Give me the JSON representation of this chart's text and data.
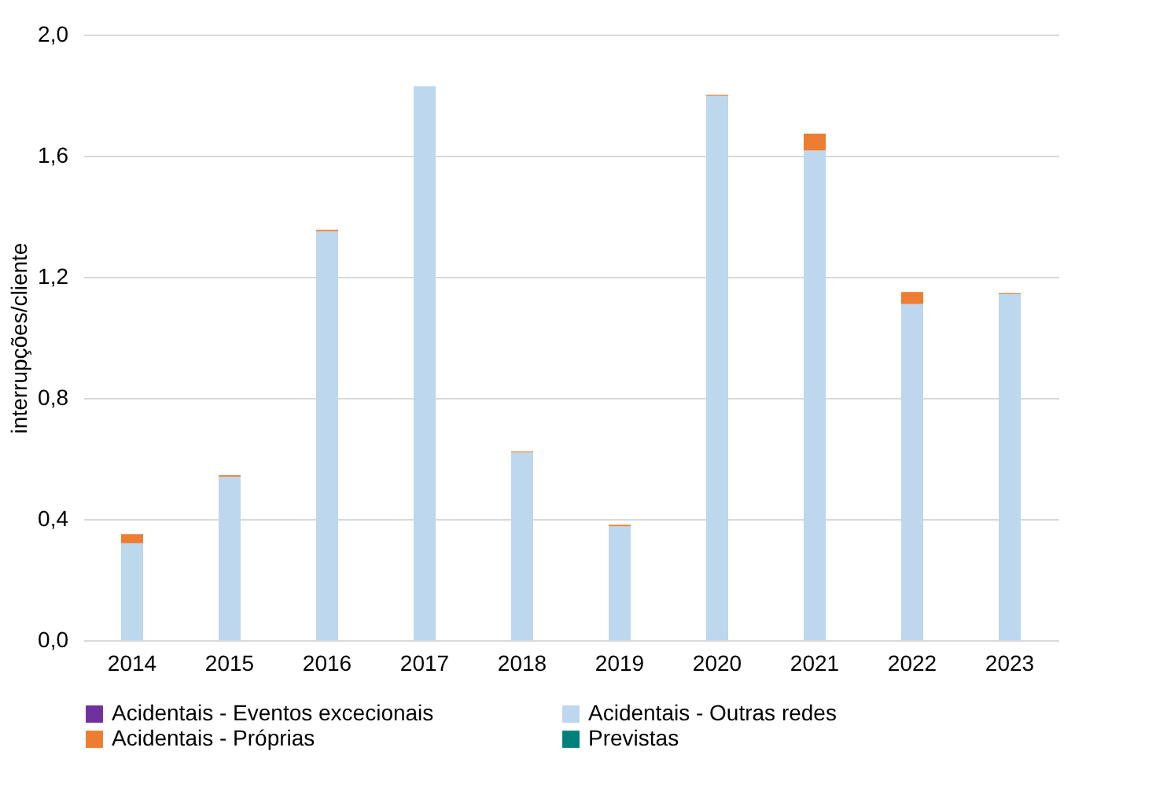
{
  "chart_data": {
    "type": "bar",
    "stacked": true,
    "ylabel": "interrupções/cliente",
    "categories": [
      "2014",
      "2015",
      "2016",
      "2017",
      "2018",
      "2019",
      "2020",
      "2021",
      "2022",
      "2023"
    ],
    "series": [
      {
        "name": "Acidentais - Eventos excecionais",
        "color": "#7030a0",
        "values": [
          null,
          null,
          null,
          null,
          null,
          null,
          null,
          null,
          null,
          null
        ]
      },
      {
        "name": "Acidentais - Outras redes",
        "color": "#bdd7ee",
        "values": [
          0.32,
          0.54,
          1.35,
          1.83,
          0.62,
          0.376,
          1.798,
          1.617,
          1.11,
          1.143
        ]
      },
      {
        "name": "Acidentais - Próprias",
        "color": "#ed7d31",
        "values": [
          0.03,
          0.005,
          0.005,
          null,
          0.003,
          0.005,
          0.003,
          0.056,
          0.04,
          0.003
        ]
      },
      {
        "name": "Previstas",
        "color": "#00807a",
        "values": [
          null,
          null,
          null,
          null,
          null,
          null,
          null,
          null,
          null,
          null
        ]
      }
    ],
    "ylim": [
      0,
      2.0
    ],
    "yticks": [
      {
        "value": 0,
        "label": "0,0"
      },
      {
        "value": 0.4,
        "label": "0,4"
      },
      {
        "value": 0.8,
        "label": "0,8"
      },
      {
        "value": 1.2,
        "label": "1,2"
      },
      {
        "value": 1.6,
        "label": "1,6"
      },
      {
        "value": 2.0,
        "label": "2,0"
      }
    ],
    "grid": "y",
    "legend": "bottom"
  }
}
